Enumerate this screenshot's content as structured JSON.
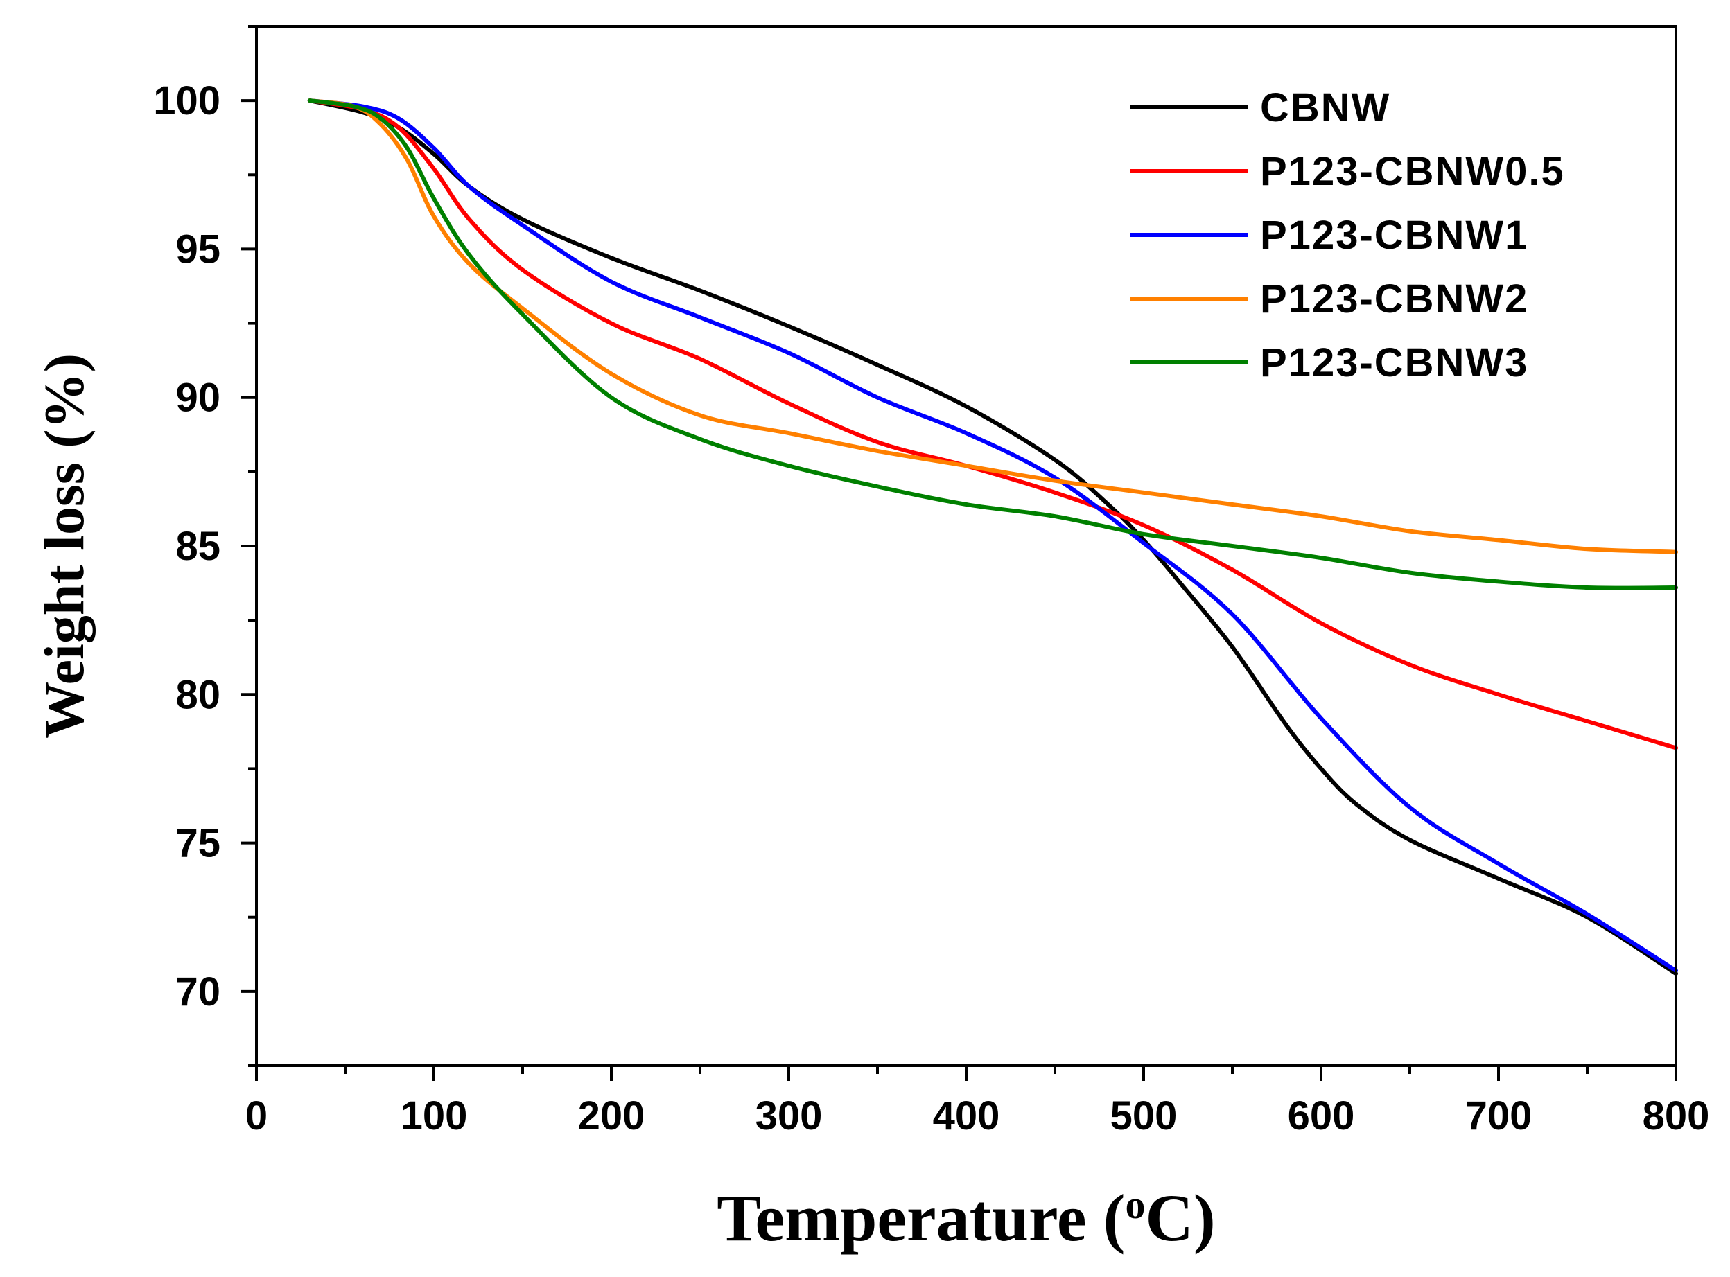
{
  "chart_data": {
    "type": "line",
    "xlabel": "Temperature (",
    "xlabel_sup": "o",
    "xlabel_unit": "C)",
    "ylabel": "Weight loss (%)",
    "xlim": [
      0,
      800
    ],
    "ylim": [
      67.5,
      102.5
    ],
    "x_ticks": [
      0,
      100,
      200,
      300,
      400,
      500,
      600,
      700,
      800
    ],
    "x_tick_labels": [
      "0",
      "100",
      "200",
      "300",
      "400",
      "500",
      "600",
      "700",
      "800"
    ],
    "y_ticks": [
      70,
      75,
      80,
      85,
      90,
      95,
      100
    ],
    "y_tick_labels": [
      "70",
      "75",
      "80",
      "85",
      "90",
      "95",
      "100"
    ],
    "grid": false,
    "legend_position": "top-right",
    "series": [
      {
        "name": "CBNW",
        "color": "#000000",
        "points": [
          [
            30,
            100
          ],
          [
            60,
            99.6
          ],
          [
            80,
            99.1
          ],
          [
            100,
            98.2
          ],
          [
            120,
            97.1
          ],
          [
            150,
            96.0
          ],
          [
            200,
            94.7
          ],
          [
            250,
            93.6
          ],
          [
            300,
            92.4
          ],
          [
            350,
            91.1
          ],
          [
            400,
            89.7
          ],
          [
            450,
            87.9
          ],
          [
            480,
            86.4
          ],
          [
            500,
            85.2
          ],
          [
            520,
            83.8
          ],
          [
            550,
            81.6
          ],
          [
            580,
            79.0
          ],
          [
            600,
            77.5
          ],
          [
            620,
            76.3
          ],
          [
            650,
            75.1
          ],
          [
            700,
            73.8
          ],
          [
            750,
            72.5
          ],
          [
            800,
            70.6
          ]
        ]
      },
      {
        "name": "P123-CBNW0.5",
        "color": "#ff0000",
        "points": [
          [
            30,
            100
          ],
          [
            60,
            99.7
          ],
          [
            80,
            99.1
          ],
          [
            100,
            97.7
          ],
          [
            120,
            96.0
          ],
          [
            150,
            94.3
          ],
          [
            200,
            92.5
          ],
          [
            250,
            91.3
          ],
          [
            300,
            89.8
          ],
          [
            350,
            88.5
          ],
          [
            400,
            87.7
          ],
          [
            450,
            86.8
          ],
          [
            500,
            85.7
          ],
          [
            550,
            84.2
          ],
          [
            600,
            82.4
          ],
          [
            650,
            81.0
          ],
          [
            700,
            80.0
          ],
          [
            750,
            79.1
          ],
          [
            800,
            78.2
          ]
        ]
      },
      {
        "name": "P123-CBNW1",
        "color": "#0000ff",
        "points": [
          [
            30,
            100
          ],
          [
            60,
            99.8
          ],
          [
            80,
            99.4
          ],
          [
            100,
            98.4
          ],
          [
            120,
            97.1
          ],
          [
            150,
            95.8
          ],
          [
            200,
            93.9
          ],
          [
            250,
            92.7
          ],
          [
            300,
            91.5
          ],
          [
            350,
            90.0
          ],
          [
            400,
            88.8
          ],
          [
            450,
            87.3
          ],
          [
            500,
            85.1
          ],
          [
            550,
            82.7
          ],
          [
            600,
            79.2
          ],
          [
            650,
            76.2
          ],
          [
            700,
            74.3
          ],
          [
            750,
            72.6
          ],
          [
            800,
            70.7
          ]
        ]
      },
      {
        "name": "P123-CBNW2",
        "color": "#ff8000",
        "points": [
          [
            30,
            100
          ],
          [
            55,
            99.8
          ],
          [
            70,
            99.2
          ],
          [
            85,
            98.0
          ],
          [
            100,
            96.1
          ],
          [
            120,
            94.5
          ],
          [
            150,
            93.0
          ],
          [
            200,
            90.8
          ],
          [
            250,
            89.4
          ],
          [
            300,
            88.8
          ],
          [
            350,
            88.2
          ],
          [
            400,
            87.7
          ],
          [
            450,
            87.2
          ],
          [
            500,
            86.8
          ],
          [
            550,
            86.4
          ],
          [
            600,
            86.0
          ],
          [
            650,
            85.5
          ],
          [
            700,
            85.2
          ],
          [
            750,
            84.9
          ],
          [
            800,
            84.8
          ]
        ]
      },
      {
        "name": "P123-CBNW3",
        "color": "#008000",
        "points": [
          [
            30,
            100
          ],
          [
            55,
            99.8
          ],
          [
            70,
            99.4
          ],
          [
            85,
            98.4
          ],
          [
            100,
            96.7
          ],
          [
            120,
            94.8
          ],
          [
            150,
            92.8
          ],
          [
            200,
            90.0
          ],
          [
            250,
            88.6
          ],
          [
            300,
            87.7
          ],
          [
            350,
            87.0
          ],
          [
            400,
            86.4
          ],
          [
            450,
            86.0
          ],
          [
            500,
            85.4
          ],
          [
            550,
            85.0
          ],
          [
            600,
            84.6
          ],
          [
            650,
            84.1
          ],
          [
            700,
            83.8
          ],
          [
            750,
            83.6
          ],
          [
            800,
            83.6
          ]
        ]
      }
    ]
  }
}
